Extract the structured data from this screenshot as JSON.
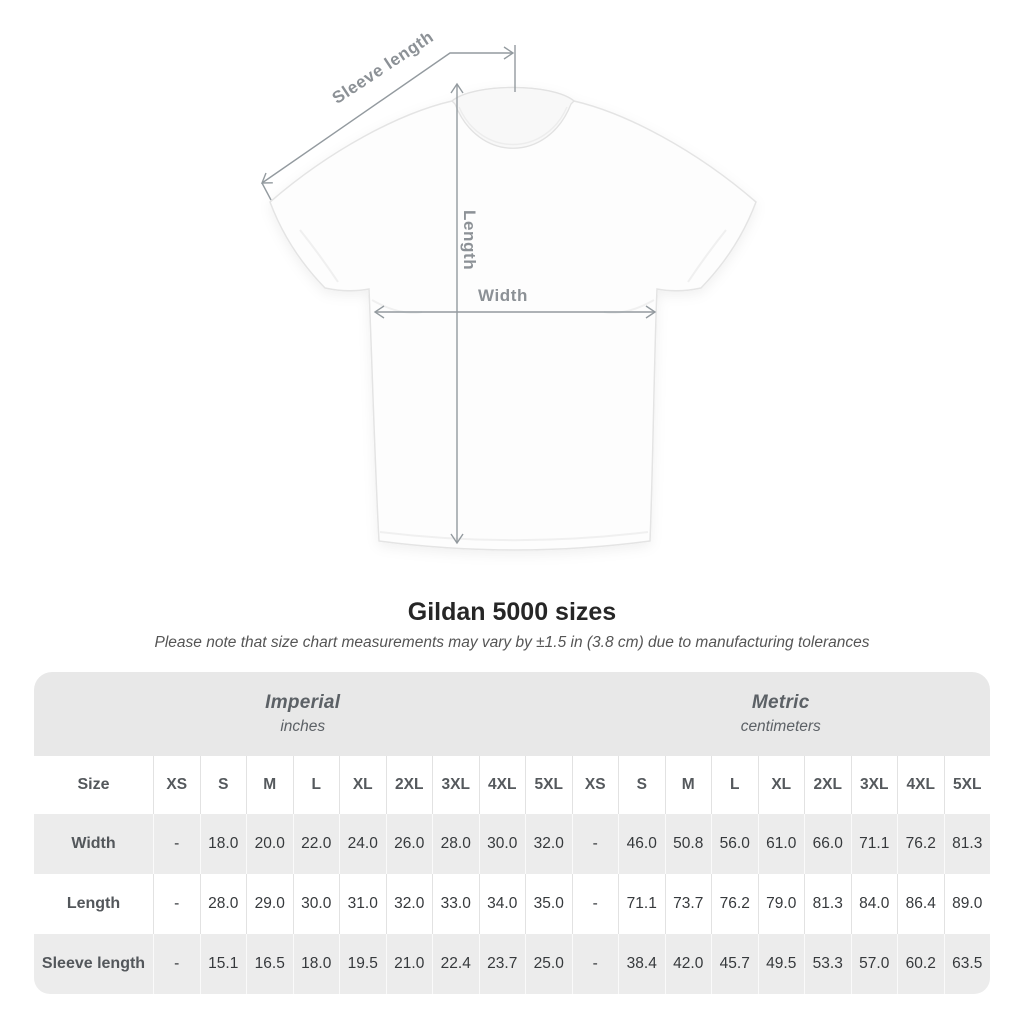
{
  "diagram": {
    "labels": {
      "sleeve_length": "Sleeve length",
      "length": "Length",
      "width": "Width"
    },
    "line_color": "#939a9f"
  },
  "chart_data": {
    "type": "table",
    "title": "Gildan 5000 sizes",
    "note": "Please note that size chart measurements may vary by ±1.5 in (3.8 cm) due to manufacturing tolerances",
    "sections": [
      {
        "label": "Imperial",
        "unit": "inches"
      },
      {
        "label": "Metric",
        "unit": "centimeters"
      }
    ],
    "size_label": "Size",
    "sizes": [
      "XS",
      "S",
      "M",
      "L",
      "XL",
      "2XL",
      "3XL",
      "4XL",
      "5XL"
    ],
    "rows": [
      {
        "label": "Width",
        "imperial": [
          "-",
          "18.0",
          "20.0",
          "22.0",
          "24.0",
          "26.0",
          "28.0",
          "30.0",
          "32.0"
        ],
        "metric": [
          "-",
          "46.0",
          "50.8",
          "56.0",
          "61.0",
          "66.0",
          "71.1",
          "76.2",
          "81.3"
        ]
      },
      {
        "label": "Length",
        "imperial": [
          "-",
          "28.0",
          "29.0",
          "30.0",
          "31.0",
          "32.0",
          "33.0",
          "34.0",
          "35.0"
        ],
        "metric": [
          "-",
          "71.1",
          "73.7",
          "76.2",
          "79.0",
          "81.3",
          "84.0",
          "86.4",
          "89.0"
        ]
      },
      {
        "label": "Sleeve length",
        "imperial": [
          "-",
          "15.1",
          "16.5",
          "18.0",
          "19.5",
          "21.0",
          "22.4",
          "23.7",
          "25.0"
        ],
        "metric": [
          "-",
          "38.4",
          "42.0",
          "45.7",
          "49.5",
          "53.3",
          "57.0",
          "60.2",
          "63.5"
        ]
      }
    ]
  }
}
